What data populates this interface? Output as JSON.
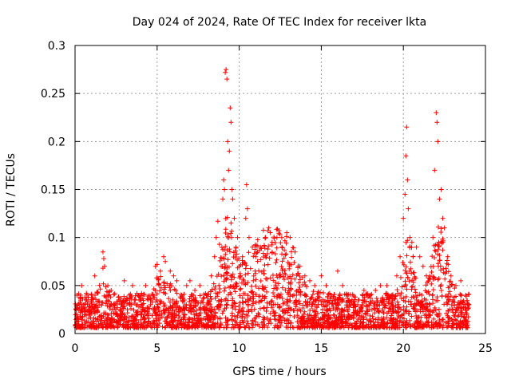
{
  "chart_data": {
    "type": "scatter",
    "title": "Day 024 of 2024, Rate Of TEC Index for receiver lkta",
    "xlabel": "GPS time / hours",
    "ylabel": "ROTI / TECUs",
    "xlim": [
      0,
      25
    ],
    "ylim": [
      0,
      0.3
    ],
    "xticks": [
      0,
      5,
      10,
      15,
      20,
      25
    ],
    "yticks": [
      0,
      0.05,
      0.1,
      0.15,
      0.2,
      0.25,
      0.3
    ],
    "xtick_labels": [
      "0",
      "5",
      "10",
      "15",
      "20",
      "25"
    ],
    "ytick_labels": [
      "0",
      "0.05",
      "0.1",
      "0.15",
      "0.2",
      "0.25",
      "0.3"
    ],
    "grid": true,
    "marker": "+",
    "color": "#ff0000",
    "x_range": [
      0,
      24
    ],
    "series": [
      {
        "name": "ROTI",
        "points": [
          [
            0.1,
            0.012
          ],
          [
            0.2,
            0.025
          ],
          [
            0.3,
            0.018
          ],
          [
            0.35,
            0.04
          ],
          [
            0.4,
            0.05
          ],
          [
            0.5,
            0.03
          ],
          [
            0.7,
            0.035
          ],
          [
            0.9,
            0.02
          ],
          [
            1.0,
            0.04
          ],
          [
            1.2,
            0.06
          ],
          [
            1.5,
            0.03
          ],
          [
            1.7,
            0.085
          ],
          [
            1.75,
            0.078
          ],
          [
            1.7,
            0.068
          ],
          [
            1.8,
            0.07
          ],
          [
            2.0,
            0.05
          ],
          [
            2.2,
            0.045
          ],
          [
            2.5,
            0.02
          ],
          [
            2.8,
            0.03
          ],
          [
            3.0,
            0.055
          ],
          [
            3.3,
            0.04
          ],
          [
            3.5,
            0.05
          ],
          [
            3.8,
            0.03
          ],
          [
            4.0,
            0.035
          ],
          [
            4.3,
            0.05
          ],
          [
            4.6,
            0.03
          ],
          [
            4.9,
            0.07
          ],
          [
            5.0,
            0.072
          ],
          [
            5.2,
            0.065
          ],
          [
            5.4,
            0.08
          ],
          [
            5.5,
            0.075
          ],
          [
            5.8,
            0.065
          ],
          [
            6.0,
            0.06
          ],
          [
            6.2,
            0.055
          ],
          [
            6.5,
            0.04
          ],
          [
            6.8,
            0.05
          ],
          [
            7.0,
            0.055
          ],
          [
            7.3,
            0.045
          ],
          [
            7.6,
            0.05
          ],
          [
            8.0,
            0.04
          ],
          [
            8.3,
            0.06
          ],
          [
            8.5,
            0.08
          ],
          [
            8.6,
            0.1
          ],
          [
            8.7,
            0.117
          ],
          [
            8.8,
            0.093
          ],
          [
            8.9,
            0.07
          ],
          [
            9.0,
            0.14
          ],
          [
            9.05,
            0.16
          ],
          [
            9.1,
            0.15
          ],
          [
            9.15,
            0.272
          ],
          [
            9.2,
            0.275
          ],
          [
            9.25,
            0.265
          ],
          [
            9.3,
            0.2
          ],
          [
            9.35,
            0.17
          ],
          [
            9.4,
            0.19
          ],
          [
            9.45,
            0.235
          ],
          [
            9.5,
            0.22
          ],
          [
            9.55,
            0.15
          ],
          [
            9.6,
            0.14
          ],
          [
            9.7,
            0.12
          ],
          [
            9.8,
            0.09
          ],
          [
            9.9,
            0.1
          ],
          [
            10.0,
            0.07
          ],
          [
            10.2,
            0.08
          ],
          [
            10.4,
            0.12
          ],
          [
            10.45,
            0.155
          ],
          [
            10.5,
            0.13
          ],
          [
            10.6,
            0.1
          ],
          [
            10.8,
            0.09
          ],
          [
            11.0,
            0.08
          ],
          [
            11.3,
            0.09
          ],
          [
            11.6,
            0.1
          ],
          [
            11.8,
            0.11
          ],
          [
            12.0,
            0.095
          ],
          [
            12.3,
            0.1
          ],
          [
            12.6,
            0.09
          ],
          [
            12.9,
            0.105
          ],
          [
            13.1,
            0.1
          ],
          [
            13.4,
            0.085
          ],
          [
            13.7,
            0.07
          ],
          [
            14.0,
            0.06
          ],
          [
            14.3,
            0.055
          ],
          [
            14.6,
            0.05
          ],
          [
            15.0,
            0.06
          ],
          [
            15.3,
            0.05
          ],
          [
            15.6,
            0.04
          ],
          [
            16.0,
            0.065
          ],
          [
            16.3,
            0.05
          ],
          [
            16.6,
            0.04
          ],
          [
            17.0,
            0.03
          ],
          [
            17.3,
            0.035
          ],
          [
            17.6,
            0.045
          ],
          [
            18.0,
            0.04
          ],
          [
            18.3,
            0.045
          ],
          [
            18.6,
            0.05
          ],
          [
            19.0,
            0.05
          ],
          [
            19.3,
            0.04
          ],
          [
            19.6,
            0.06
          ],
          [
            19.8,
            0.08
          ],
          [
            20.0,
            0.12
          ],
          [
            20.1,
            0.145
          ],
          [
            20.15,
            0.185
          ],
          [
            20.2,
            0.215
          ],
          [
            20.25,
            0.16
          ],
          [
            20.3,
            0.13
          ],
          [
            20.4,
            0.1
          ],
          [
            20.6,
            0.08
          ],
          [
            20.8,
            0.09
          ],
          [
            21.0,
            0.08
          ],
          [
            21.2,
            0.07
          ],
          [
            21.4,
            0.06
          ],
          [
            21.6,
            0.06
          ],
          [
            21.8,
            0.1
          ],
          [
            21.9,
            0.17
          ],
          [
            22.0,
            0.23
          ],
          [
            22.05,
            0.22
          ],
          [
            22.1,
            0.2
          ],
          [
            22.2,
            0.14
          ],
          [
            22.3,
            0.15
          ],
          [
            22.4,
            0.12
          ],
          [
            22.5,
            0.11
          ],
          [
            22.7,
            0.08
          ],
          [
            22.9,
            0.06
          ],
          [
            23.2,
            0.05
          ],
          [
            23.5,
            0.055
          ],
          [
            23.8,
            0.04
          ],
          [
            24.0,
            0.03
          ]
        ]
      }
    ]
  }
}
